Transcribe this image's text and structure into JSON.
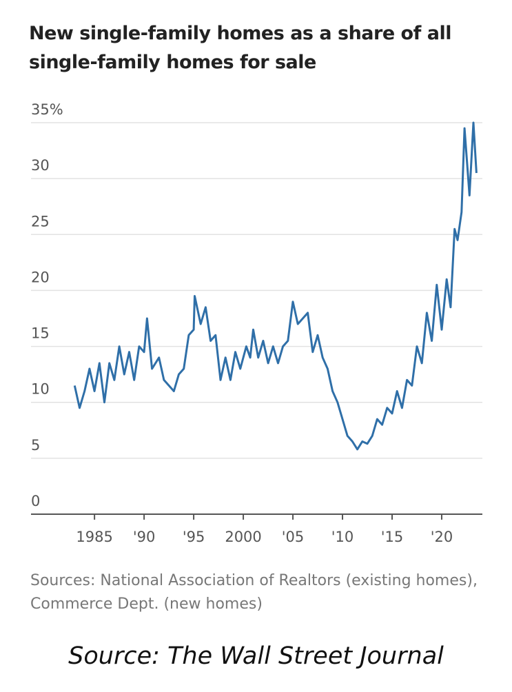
{
  "chart_data": {
    "type": "line",
    "title": "New single-family homes as a share of all single-family homes for sale",
    "source": "Sources: National Association of Realtors (existing homes), Commerce Dept. (new homes)",
    "credit": "Source: The Wall Street Journal",
    "x": [
      1983.0,
      1983.5,
      1984.0,
      1984.5,
      1985.0,
      1985.5,
      1986.0,
      1986.5,
      1987.0,
      1987.5,
      1988.0,
      1988.5,
      1989.0,
      1989.5,
      1990.0,
      1990.3,
      1990.8,
      1991.5,
      1992.0,
      1992.5,
      1993.0,
      1993.5,
      1994.0,
      1994.5,
      1995.0,
      1995.1,
      1995.7,
      1996.2,
      1996.7,
      1997.2,
      1997.7,
      1998.2,
      1998.7,
      1999.2,
      1999.7,
      2000.3,
      2000.7,
      2001.0,
      2001.5,
      2002.0,
      2002.5,
      2003.0,
      2003.5,
      2004.0,
      2004.5,
      2005.0,
      2005.5,
      2006.0,
      2006.5,
      2007.0,
      2007.5,
      2008.0,
      2008.5,
      2009.0,
      2009.5,
      2010.0,
      2010.5,
      2011.0,
      2011.5,
      2012.0,
      2012.5,
      2013.0,
      2013.5,
      2014.0,
      2014.5,
      2015.0,
      2015.5,
      2016.0,
      2016.5,
      2017.0,
      2017.5,
      2018.0,
      2018.5,
      2019.0,
      2019.5,
      2020.0,
      2020.5,
      2020.9,
      2021.3,
      2021.6,
      2022.0,
      2022.3,
      2022.8,
      2023.2,
      2023.5
    ],
    "series": [
      {
        "color": "#2f6fa8",
        "values": [
          11.5,
          9.5,
          11,
          13,
          11,
          13.5,
          10,
          13.5,
          12,
          15,
          12.5,
          14.5,
          12,
          15,
          14.5,
          17.5,
          13,
          14,
          12,
          11.5,
          11,
          12.5,
          13,
          16,
          16.5,
          19.5,
          17,
          18.5,
          15.5,
          16,
          12,
          14,
          12,
          14.5,
          13,
          15,
          14,
          16.5,
          14,
          15.5,
          13.5,
          15,
          13.5,
          15,
          15.5,
          19,
          17,
          17.5,
          18,
          14.5,
          16,
          14,
          13,
          11,
          10,
          8.5,
          7,
          6.5,
          5.8,
          6.5,
          6.3,
          7,
          8.5,
          8,
          9.5,
          9,
          11,
          9.5,
          12,
          11.5,
          15,
          13.5,
          18,
          15.5,
          20.5,
          16.5,
          21,
          18.5,
          25.5,
          24.5,
          27,
          34.5,
          28.5,
          35,
          30.5
        ]
      }
    ],
    "xlim": [
      1978.6,
      2024.1
    ],
    "xticks": [
      {
        "value": 1985,
        "label": "1985"
      },
      {
        "value": 1990,
        "label": "'90"
      },
      {
        "value": 1995,
        "label": "'95"
      },
      {
        "value": 2000,
        "label": "2000"
      },
      {
        "value": 2005,
        "label": "'05"
      },
      {
        "value": 2010,
        "label": "'10"
      },
      {
        "value": 2015,
        "label": "'15"
      },
      {
        "value": 2020,
        "label": "'20"
      }
    ],
    "ylim": [
      0,
      35
    ],
    "yticks": [
      0,
      5,
      10,
      15,
      20,
      25,
      30,
      {
        "value": 35,
        "label": "35%"
      }
    ],
    "grid": true
  }
}
